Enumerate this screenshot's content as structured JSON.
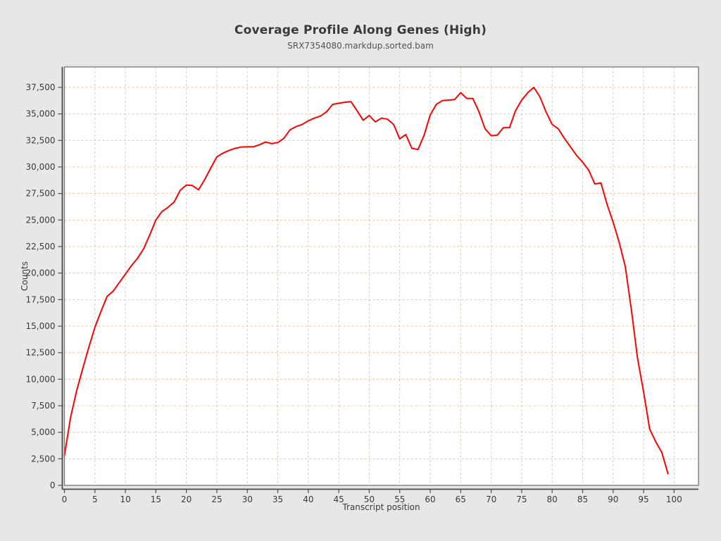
{
  "chart_data": {
    "type": "line",
    "title": "Coverage Profile Along Genes (High)",
    "subtitle": "SRX7354080.markdup.sorted.bam",
    "xlabel": "Transcript position",
    "ylabel": "Counts",
    "series_name": "SRX7354080.markdup.sorted.bam",
    "x": [
      0,
      1,
      2,
      3,
      4,
      5,
      6,
      7,
      8,
      9,
      10,
      11,
      12,
      13,
      14,
      15,
      16,
      17,
      18,
      19,
      20,
      21,
      22,
      23,
      24,
      25,
      26,
      27,
      28,
      29,
      30,
      31,
      32,
      33,
      34,
      35,
      36,
      37,
      38,
      39,
      40,
      41,
      42,
      43,
      44,
      45,
      46,
      47,
      48,
      49,
      50,
      51,
      52,
      53,
      54,
      55,
      56,
      57,
      58,
      59,
      60,
      61,
      62,
      63,
      64,
      65,
      66,
      67,
      68,
      69,
      70,
      71,
      72,
      73,
      74,
      75,
      76,
      77,
      78,
      79,
      80,
      81,
      82,
      83,
      84,
      85,
      86,
      87,
      88,
      89,
      90,
      91,
      92,
      93,
      94,
      95,
      96,
      97,
      98,
      99
    ],
    "values": [
      2800,
      6400,
      8900,
      11000,
      13000,
      14900,
      16400,
      17800,
      18300,
      19100,
      19900,
      20700,
      21400,
      22300,
      23600,
      25000,
      25800,
      26200,
      26700,
      27800,
      28300,
      28250,
      27850,
      28800,
      29900,
      30950,
      31300,
      31550,
      31750,
      31880,
      31900,
      31900,
      32100,
      32350,
      32200,
      32300,
      32700,
      33500,
      33800,
      34000,
      34350,
      34600,
      34800,
      35200,
      35900,
      36000,
      36100,
      36150,
      35300,
      34400,
      34850,
      34250,
      34600,
      34500,
      34000,
      32650,
      33050,
      31750,
      31650,
      33000,
      34900,
      35900,
      36250,
      36300,
      36350,
      37000,
      36450,
      36450,
      35200,
      33600,
      32950,
      33000,
      33700,
      33700,
      35300,
      36300,
      37000,
      37500,
      36600,
      35200,
      34000,
      33600,
      32700,
      31900,
      31100,
      30450,
      29700,
      28400,
      28500,
      26500,
      24800,
      22900,
      20600,
      16500,
      12000,
      8800,
      5300,
      4100,
      3100,
      1100
    ],
    "x_ticks": [
      0,
      5,
      10,
      15,
      20,
      25,
      30,
      35,
      40,
      45,
      50,
      55,
      60,
      65,
      70,
      75,
      80,
      85,
      90,
      95,
      100
    ],
    "y_ticks": [
      0,
      2500,
      5000,
      7500,
      10000,
      12500,
      15000,
      17500,
      20000,
      22500,
      25000,
      27500,
      30000,
      32500,
      35000,
      37500
    ],
    "xlim": [
      0,
      104
    ],
    "ylim": [
      0,
      39434
    ],
    "grid": true,
    "legend": "none",
    "line_color": "#ff0000",
    "grid_color": "#f3c39c",
    "plot_bg": "#ffffff",
    "page_bg": "#e7e7e7",
    "frame_color": "#757575",
    "axis_color": "#4c4c4c",
    "tick_label_color": "#3a3a3a"
  }
}
